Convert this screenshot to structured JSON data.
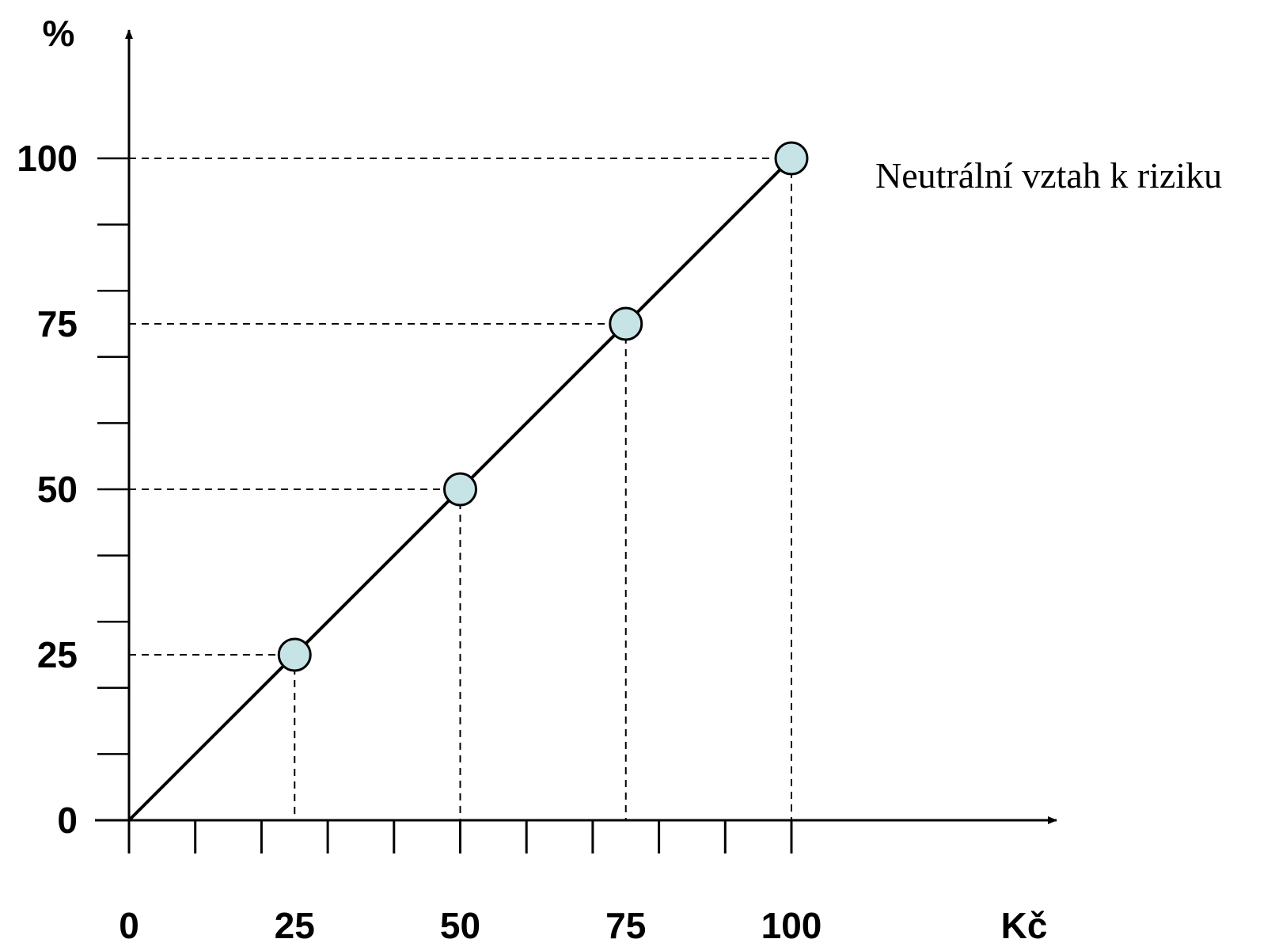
{
  "chart_data": {
    "type": "line",
    "title": "",
    "xlabel": "Kč",
    "ylabel": "%",
    "xlim": [
      0,
      100
    ],
    "ylim": [
      0,
      100
    ],
    "x_ticks": [
      "0",
      "25",
      "50",
      "75",
      "100"
    ],
    "y_ticks": [
      "0",
      "25",
      "50",
      "75",
      "100"
    ],
    "grid": false,
    "legend": "none",
    "series": [
      {
        "x": [
          0,
          25,
          50,
          75,
          100
        ],
        "y": [
          0,
          25,
          50,
          75,
          100
        ],
        "line_color": "#000000",
        "marker_fill": "#c6e4e6"
      }
    ],
    "markers": [
      {
        "x": 25,
        "y": 25
      },
      {
        "x": 50,
        "y": 50
      },
      {
        "x": 75,
        "y": 75
      },
      {
        "x": 100,
        "y": 100
      }
    ],
    "annotations": [
      "Neutrální vztah k riziku"
    ]
  }
}
